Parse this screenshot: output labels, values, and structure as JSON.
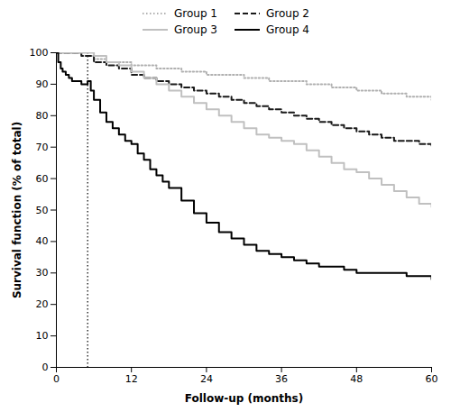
{
  "chart_data": {
    "type": "step",
    "xlabel": "Follow-up (months)",
    "ylabel": "Survival function (% of total)",
    "xlim": [
      0,
      60
    ],
    "ylim": [
      0,
      100
    ],
    "xticks": [
      0,
      12,
      24,
      36,
      48,
      60
    ],
    "yticks": [
      0,
      10,
      20,
      30,
      40,
      50,
      60,
      70,
      80,
      90,
      100
    ],
    "grid": false,
    "legend": "top",
    "vline": {
      "x": 5,
      "color": "#000000",
      "line_style": "dotted"
    },
    "series": [
      {
        "name": "Group 1",
        "color": "#b0b0b0",
        "line_style": "dotted",
        "x": [
          0,
          2,
          4,
          6,
          8,
          10,
          12,
          14,
          16,
          18,
          20,
          22,
          24,
          26,
          28,
          30,
          32,
          34,
          36,
          38,
          40,
          42,
          44,
          46,
          48,
          50,
          52,
          54,
          56,
          58,
          60
        ],
        "values": [
          100,
          100,
          99,
          98,
          97,
          97,
          96,
          96,
          95,
          95,
          94,
          94,
          93,
          93,
          93,
          92,
          92,
          91,
          91,
          91,
          90,
          90,
          89,
          89,
          88,
          88,
          87,
          87,
          86,
          86,
          85
        ]
      },
      {
        "name": "Group 2",
        "color": "#1a1a1a",
        "line_style": "dashed",
        "x": [
          0,
          2,
          4,
          6,
          8,
          10,
          12,
          14,
          16,
          18,
          20,
          22,
          24,
          26,
          28,
          30,
          32,
          34,
          36,
          38,
          40,
          42,
          44,
          46,
          48,
          50,
          52,
          54,
          56,
          58,
          60
        ],
        "values": [
          100,
          100,
          99,
          97,
          96,
          95,
          93,
          92,
          91,
          90,
          89,
          88,
          87,
          86,
          85,
          84,
          83,
          82,
          81,
          80,
          79,
          78,
          77,
          76,
          75,
          74,
          73,
          72,
          72,
          71,
          70
        ]
      },
      {
        "name": "Group 3",
        "color": "#c0c0c0",
        "line_style": "solid",
        "x": [
          0,
          2,
          4,
          6,
          8,
          10,
          12,
          14,
          16,
          18,
          20,
          22,
          24,
          26,
          28,
          30,
          32,
          34,
          36,
          38,
          40,
          42,
          44,
          46,
          48,
          50,
          52,
          54,
          56,
          58,
          60
        ],
        "values": [
          100,
          100,
          100,
          99,
          97,
          96,
          94,
          92,
          90,
          88,
          86,
          84,
          82,
          80,
          78,
          76,
          74,
          73,
          72,
          71,
          69,
          67,
          65,
          63,
          62,
          60,
          58,
          56,
          54,
          52,
          51
        ]
      },
      {
        "name": "Group 4",
        "color": "#000000",
        "line_style": "solid",
        "x": [
          0,
          0.3,
          0.7,
          1,
          1.5,
          2,
          2.5,
          3,
          3.5,
          4,
          4.5,
          5,
          5.5,
          6,
          7,
          8,
          9,
          10,
          11,
          12,
          13,
          14,
          15,
          16,
          17,
          18,
          20,
          22,
          24,
          26,
          28,
          30,
          32,
          34,
          36,
          38,
          40,
          42,
          44,
          46,
          48,
          50,
          52,
          54,
          56,
          58,
          60
        ],
        "values": [
          100,
          97,
          95,
          94,
          93,
          92,
          91,
          91,
          91,
          90,
          90,
          91,
          88,
          85,
          81,
          78,
          76,
          74,
          72,
          71,
          68,
          66,
          63,
          61,
          59,
          57,
          53,
          49,
          46,
          43,
          41,
          39,
          37,
          36,
          35,
          34,
          33,
          32,
          32,
          31,
          30,
          30,
          30,
          30,
          29,
          29,
          28
        ]
      }
    ]
  }
}
